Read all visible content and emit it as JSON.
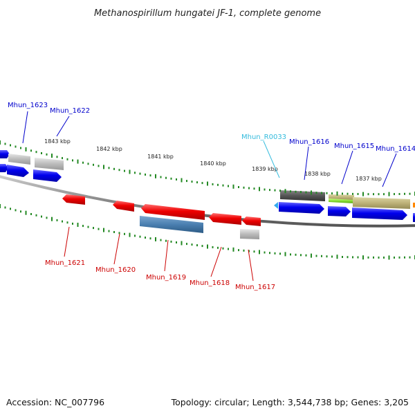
{
  "title": "Methanospirillum hungatei JF-1, complete genome",
  "footer": {
    "accession": "Accession: NC_007796",
    "info": "Topology: circular; Length: 3,544,738 bp; Genes: 3,205"
  },
  "colors": {
    "forward_label": "#0000cc",
    "reverse_label": "#cc0000",
    "rna_label": "#33bbdd",
    "tick": "#228822",
    "backbone": "#888888"
  },
  "scale": [
    {
      "label": "1843 kbp"
    },
    {
      "label": "1842 kbp"
    },
    {
      "label": "1841 kbp"
    },
    {
      "label": "1840 kbp"
    },
    {
      "label": "1839 kbp"
    },
    {
      "label": "1838 kbp"
    },
    {
      "label": "1837 kbp"
    }
  ],
  "genes_forward": [
    {
      "name": "Mhun_1623"
    },
    {
      "name": "Mhun_1622"
    },
    {
      "name": "Mhun_R0033"
    },
    {
      "name": "Mhun_1616"
    },
    {
      "name": "Mhun_1615"
    },
    {
      "name": "Mhun_1614"
    }
  ],
  "genes_reverse": [
    {
      "name": "Mhun_1621"
    },
    {
      "name": "Mhun_1620"
    },
    {
      "name": "Mhun_1619"
    },
    {
      "name": "Mhun_1618"
    },
    {
      "name": "Mhun_1617"
    }
  ]
}
